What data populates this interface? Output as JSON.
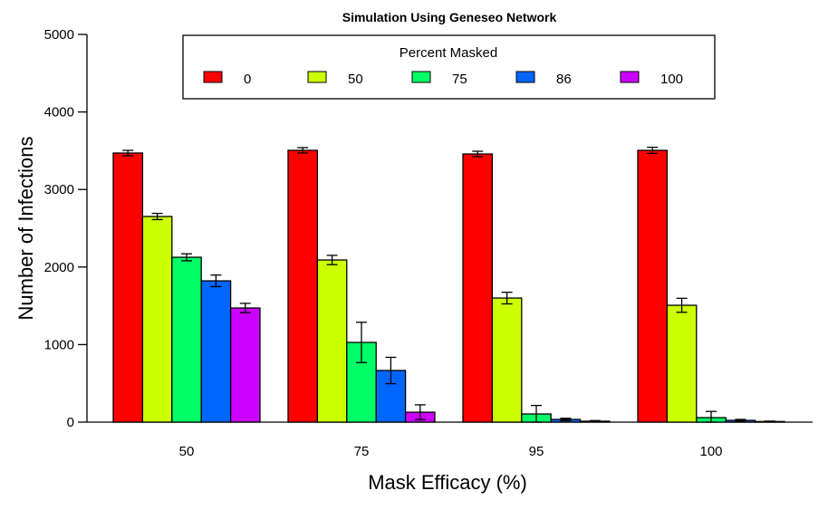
{
  "chart_data": {
    "type": "bar",
    "title": "Simulation Using Geneseo Network",
    "xlabel": "Mask Efficacy (%)",
    "ylabel": "Number of Infections",
    "ylim": [
      0,
      5000
    ],
    "yticks": [
      0,
      1000,
      2000,
      3000,
      4000,
      5000
    ],
    "grid": false,
    "categories": [
      "50",
      "75",
      "95",
      "100"
    ],
    "legend": {
      "title": "Percent Masked",
      "placement": "top-center"
    },
    "series": [
      {
        "name": "0",
        "color": "#FF0000",
        "values": [
          3470,
          3505,
          3458,
          3505
        ],
        "errors": [
          35,
          35,
          35,
          40
        ]
      },
      {
        "name": "50",
        "color": "#CCFF00",
        "values": [
          2652,
          2091,
          1600,
          1507
        ],
        "errors": [
          40,
          60,
          75,
          90
        ]
      },
      {
        "name": "75",
        "color": "#00FF66",
        "values": [
          2126,
          1028,
          105,
          58
        ],
        "errors": [
          45,
          260,
          110,
          80
        ]
      },
      {
        "name": "86",
        "color": "#0066FF",
        "values": [
          1822,
          666,
          35,
          23
        ],
        "errors": [
          75,
          170,
          15,
          12
        ]
      },
      {
        "name": "100",
        "color": "#CC00FF",
        "values": [
          1472,
          128,
          12,
          8
        ],
        "errors": [
          60,
          95,
          8,
          5
        ]
      }
    ]
  }
}
